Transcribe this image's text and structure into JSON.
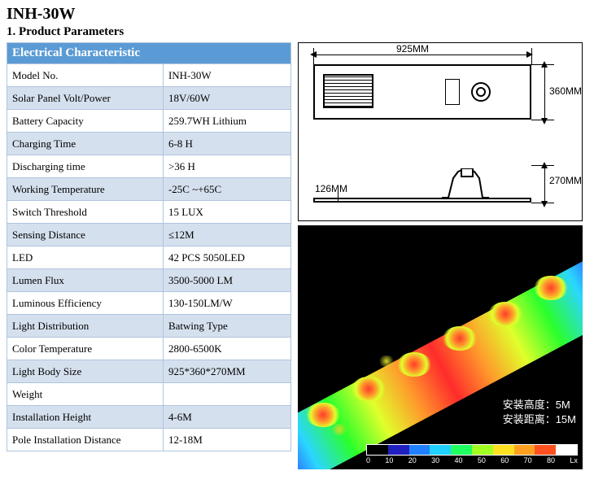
{
  "header": {
    "title": "INH-30W",
    "subtitle": "1. Product Parameters"
  },
  "spec_header": "Electrical Characteristic",
  "specs": [
    {
      "label": "Model No.",
      "value": "INH-30W"
    },
    {
      "label": "Solar Panel Volt/Power",
      "value": "18V/60W"
    },
    {
      "label": "Battery Capacity",
      "value": "259.7WH Lithium"
    },
    {
      "label": "Charging Time",
      "value": "6-8 H"
    },
    {
      "label": "Discharging time",
      "value": ">36 H"
    },
    {
      "label": "Working Temperature",
      "value": "-25C ~+65C"
    },
    {
      "label": "Switch Threshold",
      "value": "15 LUX"
    },
    {
      "label": "Sensing Distance",
      "value": "≤12M"
    },
    {
      "label": "LED",
      "value": "42 PCS 5050LED"
    },
    {
      "label": "Lumen Flux",
      "value": "3500-5000 LM"
    },
    {
      "label": "Luminous Efficiency",
      "value": "130-150LM/W"
    },
    {
      "label": "Light Distribution",
      "value": "Batwing Type"
    },
    {
      "label": "Color Temperature",
      "value": "2800-6500K"
    },
    {
      "label": "Light Body Size",
      "value": "925*360*270MM"
    },
    {
      "label": "Weight",
      "value": ""
    },
    {
      "label": "Installation Height",
      "value": "4-6M"
    },
    {
      "label": "Pole Installation Distance",
      "value": "12-18M"
    }
  ],
  "drawing": {
    "dim_width": "925MM",
    "dim_height_upper": "360MM",
    "dim_height_lower": "270MM",
    "dim_small": "126MM",
    "body_fill": "#ffffff",
    "stroke": "#000000"
  },
  "photometric": {
    "background": "#000000",
    "cn_line1": "安装高度：5M",
    "cn_line2": "安装距离：15M",
    "cn_color": "#ffffff",
    "scale_colors": [
      "#000000",
      "#2020c0",
      "#2080ff",
      "#20d0ff",
      "#20ff60",
      "#a0ff20",
      "#ffe020",
      "#ffa020",
      "#ff5020",
      "#ffffff"
    ],
    "scale_ticks": [
      "0",
      "10",
      "20",
      "30",
      "40",
      "50",
      "60",
      "70",
      "80",
      "Lx"
    ]
  }
}
